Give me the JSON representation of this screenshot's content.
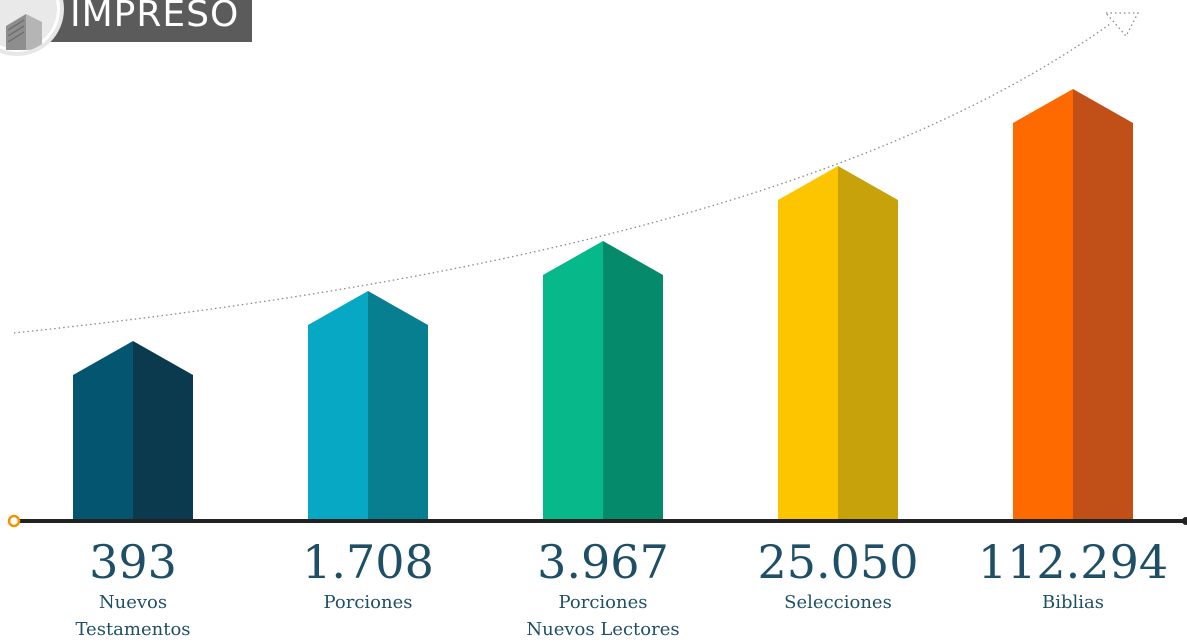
{
  "header": {
    "title": "IMPRESO",
    "icon": "book-icon"
  },
  "chart_data": {
    "type": "bar",
    "categories": [
      [
        "Nuevos",
        "Testamentos"
      ],
      [
        "Porciones"
      ],
      [
        "Porciones",
        "Nuevos Lectores"
      ],
      [
        "Selecciones"
      ],
      [
        "Biblias"
      ]
    ],
    "values": [
      393,
      1708,
      3967,
      25050,
      112294
    ],
    "value_labels": [
      "393",
      "1.708",
      "3.967",
      "25.050",
      "112.294"
    ],
    "colors": [
      {
        "front": "#045570",
        "side": "#0b3a4e"
      },
      {
        "front": "#06a8c4",
        "side": "#077f90"
      },
      {
        "front": "#06b88a",
        "side": "#058a6b"
      },
      {
        "front": "#fdc500",
        "side": "#c8a20a"
      },
      {
        "front": "#ff6a00",
        "side": "#c14f18"
      }
    ],
    "axis_color": "#222222",
    "accent": "#f39200",
    "trend_line": "dotted",
    "trend_arrow": "triangle-arrow-icon"
  }
}
